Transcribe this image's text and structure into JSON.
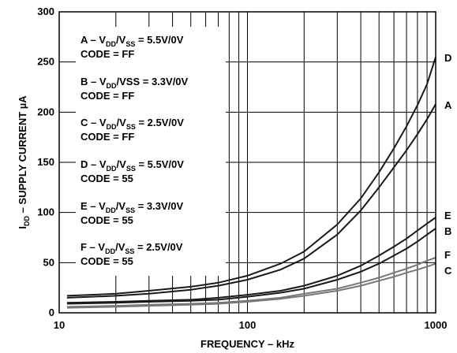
{
  "chart_data": {
    "type": "line",
    "xscale": "log",
    "xlabel": "FREQUENCY – kHz",
    "ylabel_main": "I",
    "ylabel_sub": "DD",
    "ylabel_rest": " – SUPPLY CURRENT µA",
    "xlim": [
      10,
      1000
    ],
    "ylim": [
      0,
      300
    ],
    "xticks": [
      {
        "value": 10,
        "label": "10"
      },
      {
        "value": 100,
        "label": "100"
      },
      {
        "value": 1000,
        "label": "1000"
      }
    ],
    "yticks": [
      {
        "value": 0,
        "label": "0"
      },
      {
        "value": 50,
        "label": "50"
      },
      {
        "value": 100,
        "label": "100"
      },
      {
        "value": 150,
        "label": "150"
      },
      {
        "value": 200,
        "label": "200"
      },
      {
        "value": 250,
        "label": "250"
      },
      {
        "value": 300,
        "label": "300"
      }
    ],
    "grid": true,
    "legend": [
      {
        "prefix": "A – V",
        "sub1": "DD",
        "mid": "/V",
        "sub2": "SS",
        "suffix": " = 5.5V/0V",
        "code": "CODE = FF"
      },
      {
        "prefix": "B – V",
        "sub1": "DD",
        "mid": "/VSS",
        "sub2": "",
        "suffix": " = 3.3V/0V",
        "code": "CODE = FF"
      },
      {
        "prefix": "C – V",
        "sub1": "DD",
        "mid": "/V",
        "sub2": "SS",
        "suffix": " = 2.5V/0V",
        "code": "CODE = FF"
      },
      {
        "prefix": "D – V",
        "sub1": "DD",
        "mid": "/V",
        "sub2": "SS",
        "suffix": " = 5.5V/0V",
        "code": "CODE = 55"
      },
      {
        "prefix": "E – V",
        "sub1": "DD",
        "mid": "/V",
        "sub2": "SS",
        "suffix": " = 3.3V/0V",
        "code": "CODE = 55"
      },
      {
        "prefix": "F – V",
        "sub1": "DD",
        "mid": "/V",
        "sub2": "SS",
        "suffix": " = 2.5V/0V",
        "code": "CODE = 55"
      }
    ],
    "x": [
      11,
      20,
      30,
      50,
      70,
      100,
      150,
      200,
      300,
      400,
      500,
      600,
      700,
      800,
      900,
      1000
    ],
    "series": [
      {
        "name": "A",
        "color": "#1a1a1a",
        "values": [
          15,
          17,
          19,
          23,
          27,
          33,
          43,
          54,
          78,
          102,
          125,
          145,
          162,
          178,
          193,
          208
        ]
      },
      {
        "name": "B",
        "color": "#1a1a1a",
        "values": [
          9,
          10,
          11,
          12,
          13,
          16,
          20,
          24,
          33,
          41,
          49,
          57,
          64,
          71,
          78,
          84
        ]
      },
      {
        "name": "C",
        "color": "#777777",
        "values": [
          5,
          6,
          7,
          8,
          9,
          11,
          14,
          17,
          22,
          27,
          32,
          36,
          40,
          43,
          46,
          49
        ]
      },
      {
        "name": "D",
        "color": "#1a1a1a",
        "values": [
          17,
          19,
          22,
          26,
          30,
          37,
          49,
          61,
          88,
          114,
          140,
          164,
          186,
          207,
          228,
          255
        ]
      },
      {
        "name": "E",
        "color": "#1a1a1a",
        "values": [
          10,
          11,
          12,
          13,
          15,
          18,
          22,
          27,
          37,
          47,
          57,
          66,
          74,
          82,
          89,
          95
        ]
      },
      {
        "name": "F",
        "color": "#777777",
        "values": [
          6,
          7,
          8,
          9,
          10,
          12,
          15,
          19,
          24,
          30,
          35,
          40,
          44,
          48,
          52,
          55
        ]
      }
    ]
  }
}
